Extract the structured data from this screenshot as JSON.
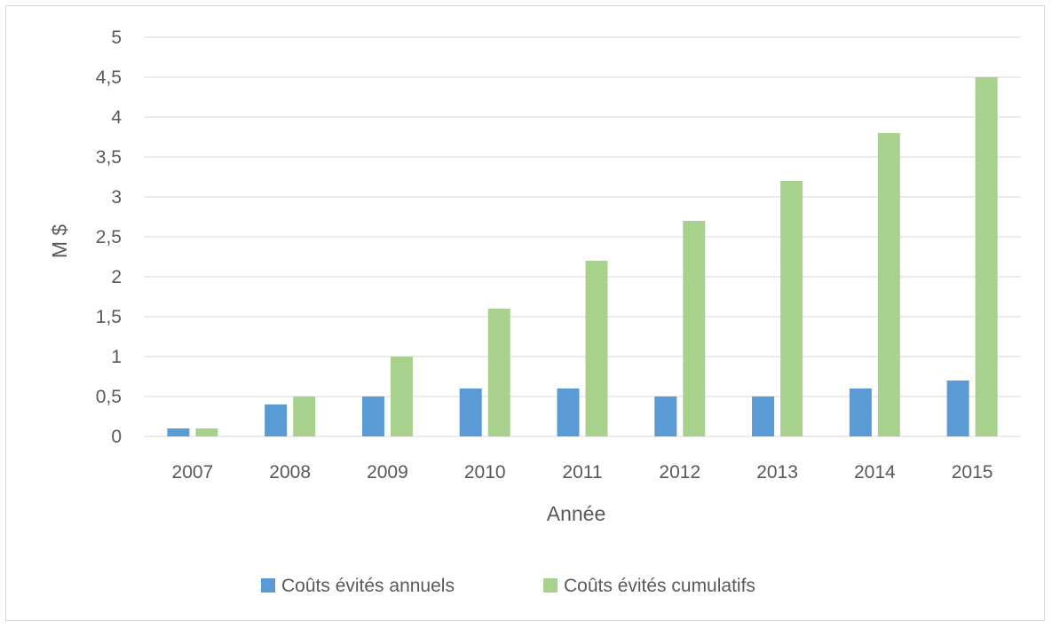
{
  "chart_data": {
    "type": "bar",
    "title": "",
    "xlabel": "Année",
    "ylabel": "M $",
    "ylim": [
      0,
      5
    ],
    "yticks": [
      0,
      0.5,
      1,
      1.5,
      2,
      2.5,
      3,
      3.5,
      4,
      4.5,
      5
    ],
    "ytick_labels": [
      "0",
      "0,5",
      "1",
      "1,5",
      "2",
      "2,5",
      "3",
      "3,5",
      "4",
      "4,5",
      "5"
    ],
    "categories": [
      "2007",
      "2008",
      "2009",
      "2010",
      "2011",
      "2012",
      "2013",
      "2014",
      "2015"
    ],
    "series": [
      {
        "name": "Coûts évités annuels",
        "color": "#5b9bd5",
        "values": [
          0.1,
          0.4,
          0.5,
          0.6,
          0.6,
          0.5,
          0.5,
          0.6,
          0.7
        ]
      },
      {
        "name": "Coûts évités cumulatifs",
        "color": "#a9d18e",
        "values": [
          0.1,
          0.5,
          1.0,
          1.6,
          2.2,
          2.7,
          3.2,
          3.8,
          4.5
        ]
      }
    ],
    "grid": true,
    "gridline_color": "#d9d9d9",
    "legend_position": "bottom"
  }
}
